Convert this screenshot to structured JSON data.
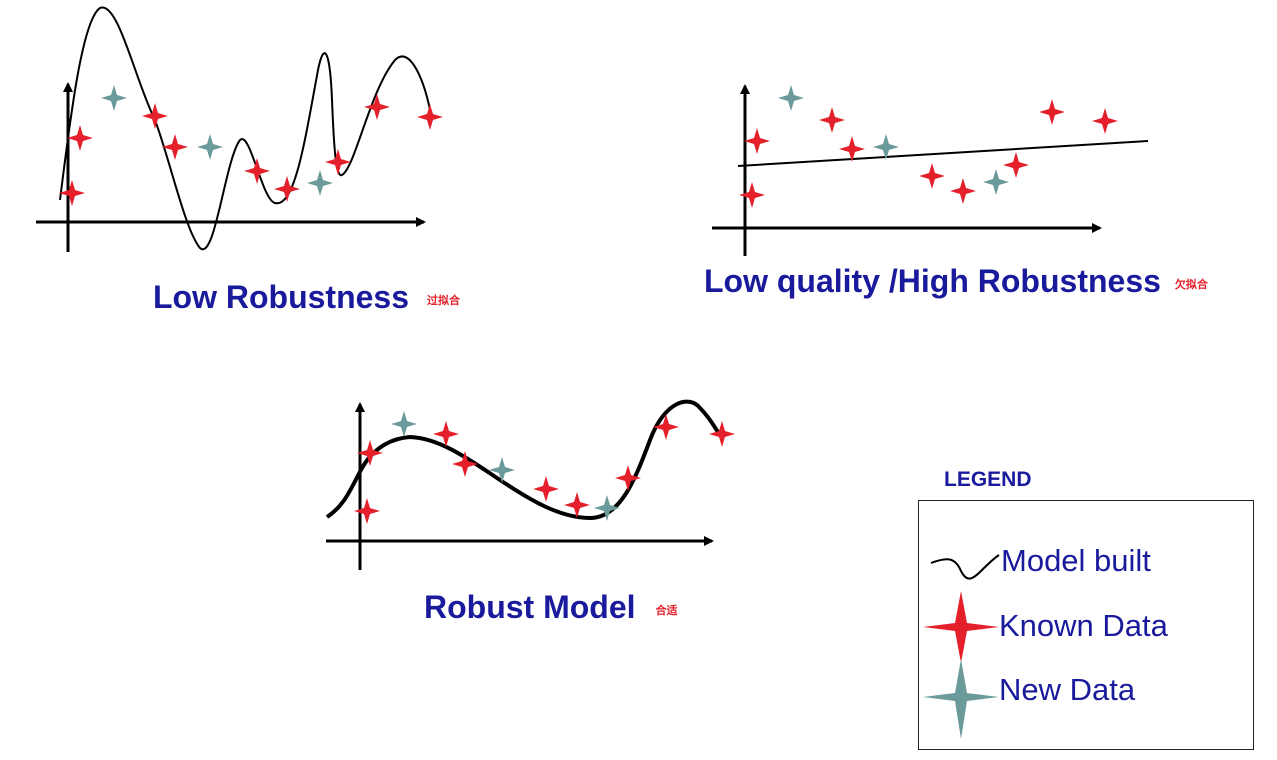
{
  "colors": {
    "known": "#e4202a",
    "new": "#6a9a9a",
    "caption": "#1a1a9c",
    "tag": "#e4202a"
  },
  "panels": {
    "overfit": {
      "caption": "Low Robustness",
      "tag": "过拟合"
    },
    "underfit": {
      "caption": "Low quality  /High Robustness",
      "tag": "欠拟合"
    },
    "robust": {
      "caption": "Robust Model",
      "tag": "合适"
    }
  },
  "legend": {
    "title": "LEGEND",
    "items": [
      {
        "label": "Model built",
        "icon": "curve-icon"
      },
      {
        "label": "Known Data",
        "icon": "red-star-icon"
      },
      {
        "label": "New Data",
        "icon": "teal-star-icon"
      }
    ]
  }
}
